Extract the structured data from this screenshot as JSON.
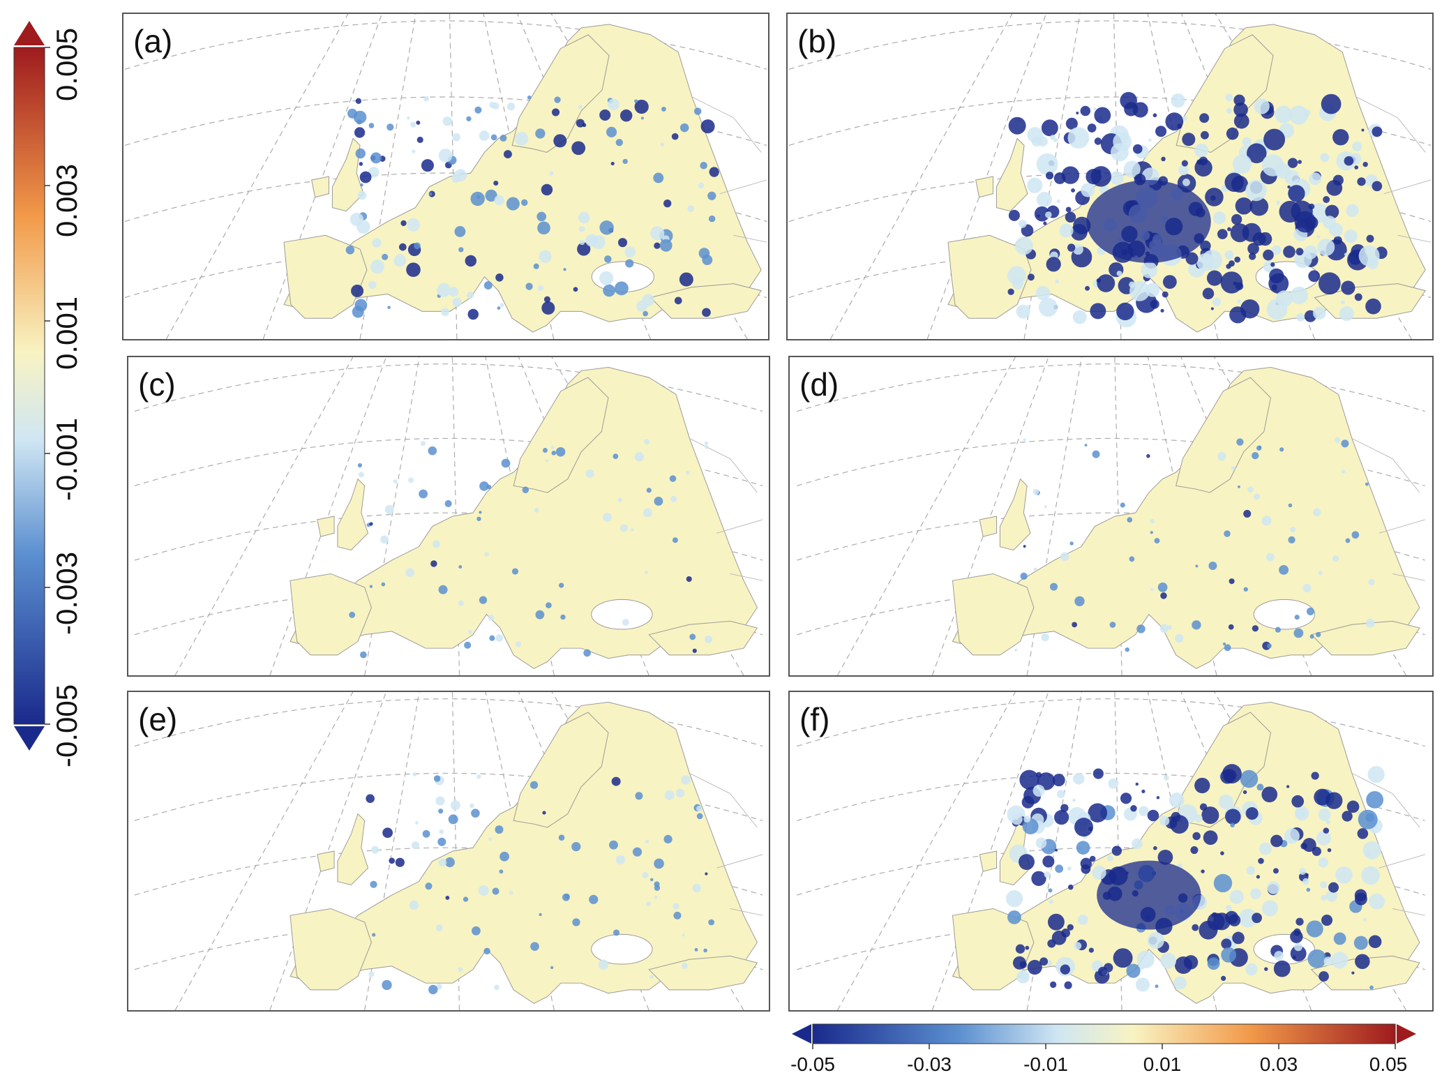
{
  "panels": [
    {
      "label": "(a)",
      "intensity": 0.45
    },
    {
      "label": "(b)",
      "intensity": 1.0
    },
    {
      "label": "(c)",
      "intensity": 0.12
    },
    {
      "label": "(d)",
      "intensity": 0.15
    },
    {
      "label": "(e)",
      "intensity": 0.18
    },
    {
      "label": "(f)",
      "intensity": 0.85
    }
  ],
  "vertical_colorbar": {
    "ticks": [
      "0.005",
      "0.003",
      "0.001",
      "-0.001",
      "-0.003",
      "-0.005"
    ],
    "min": -0.005,
    "max": 0.005,
    "extend": "both"
  },
  "horizontal_colorbar": {
    "ticks": [
      "-0.05",
      "-0.03",
      "-0.01",
      "0.01",
      "0.03",
      "0.05"
    ],
    "min": -0.05,
    "max": 0.05,
    "extend": "both"
  },
  "colors": {
    "dark_blue": "#1a2a8c",
    "mid_blue": "#5b8fd0",
    "light_blue": "#cfe6f3",
    "yellow": "#f8f3c2",
    "orange": "#f29a4a",
    "dark_red": "#9e1b1e"
  }
}
